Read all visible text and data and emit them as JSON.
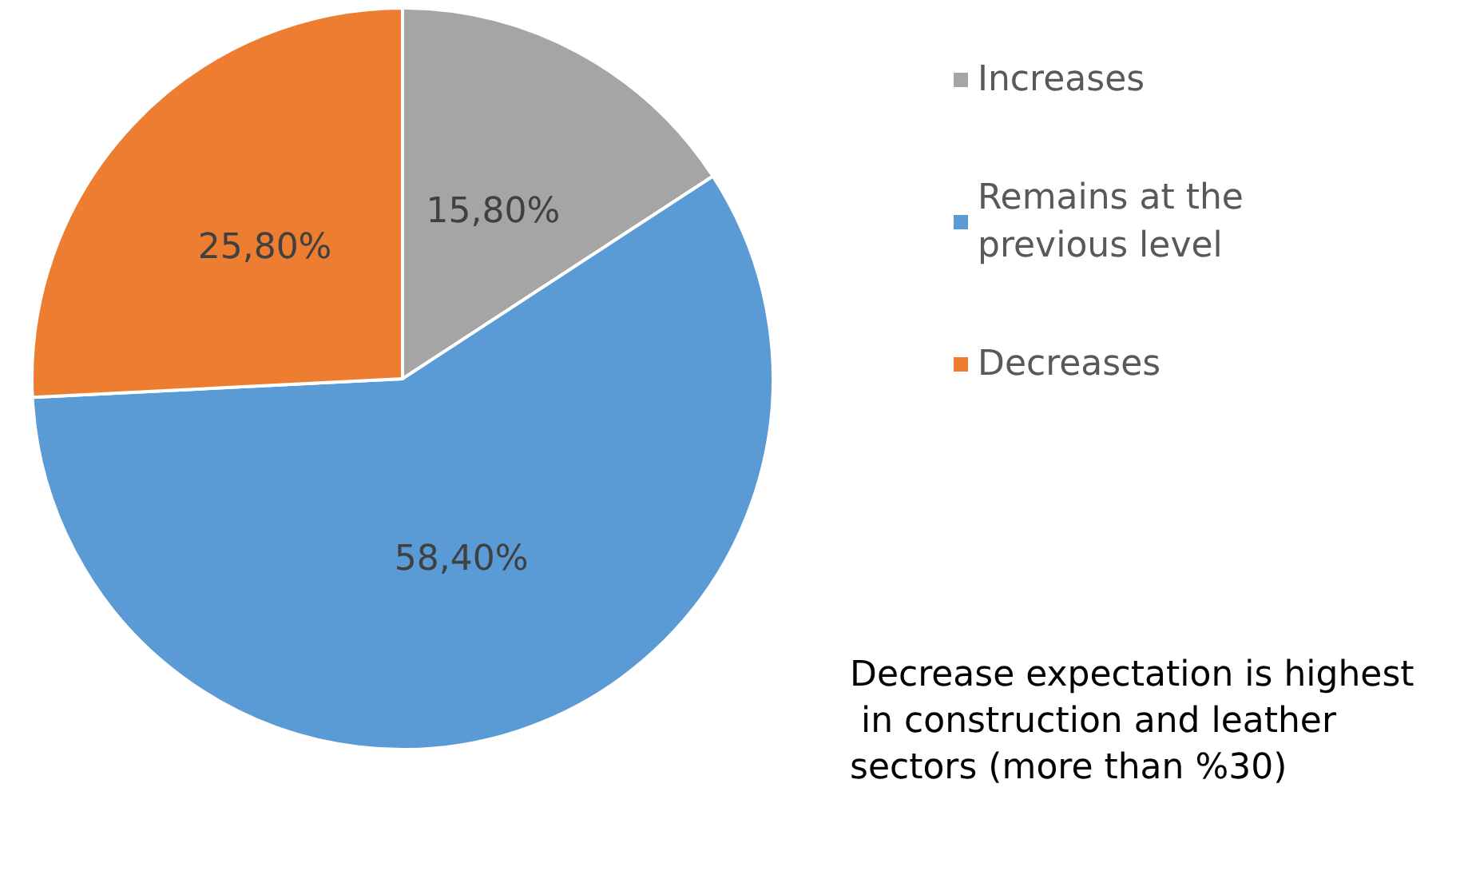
{
  "chart_data": {
    "type": "pie",
    "categories": [
      "Increases",
      "Remains at the previous level",
      "Decreases"
    ],
    "values": [
      15.8,
      58.4,
      25.8
    ],
    "value_labels": [
      "15,80%",
      "58,40%",
      "25,80%"
    ],
    "colors": [
      "#a5a5a5",
      "#5b9bd5",
      "#ed7d31"
    ],
    "legend": "right",
    "annotations": [
      "Decrease expectation is highest in construction and leather sectors (more than %30)"
    ]
  }
}
